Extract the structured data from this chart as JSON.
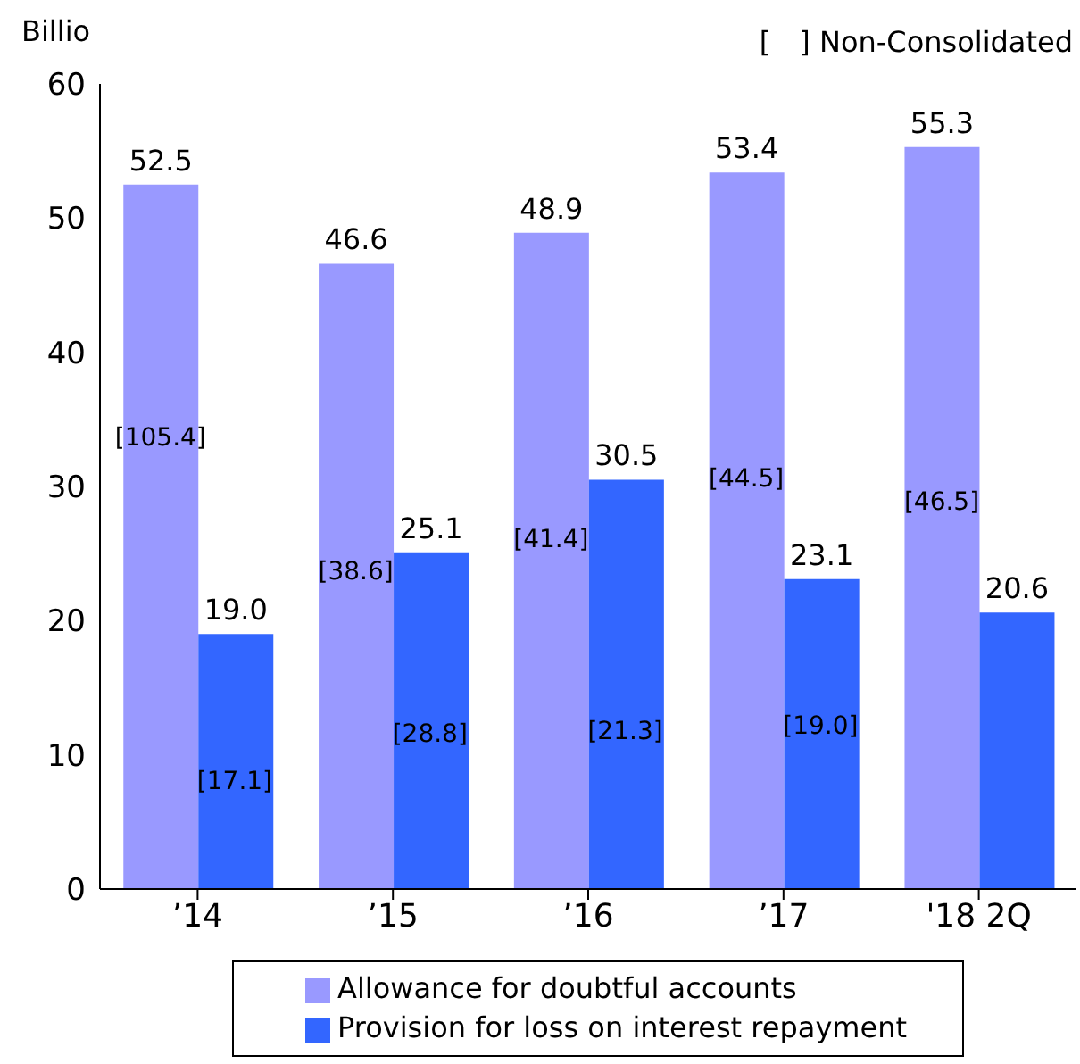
{
  "chart_data": {
    "type": "bar",
    "ylabel": "Billio",
    "annotations": [
      "[　] Non-Consolidated",
      {
        "text": "[105.4]",
        "x": "’14",
        "y": 33.6
      },
      {
        "text": "[17.1]",
        "x": "’14",
        "y": 8
      },
      {
        "text": "[38.6]",
        "x": "’15",
        "y": 23.6
      },
      {
        "text": "[28.8]",
        "x": "’15",
        "y": 11.5
      },
      {
        "text": "[41.4]",
        "x": "’16",
        "y": 26
      },
      {
        "text": "[21.3]",
        "x": "’16",
        "y": 11.7
      },
      {
        "text": "[44.5]",
        "x": "’17",
        "y": 30.5
      },
      {
        "text": "[19.0]",
        "x": "’17",
        "y": 12.1
      },
      {
        "text": "[46.5]",
        "x": "'18 2Q",
        "y": 28.8
      }
    ],
    "categories": [
      "’14",
      "’15",
      "’16",
      "’17",
      "'18 2Q"
    ],
    "series": [
      {
        "name": "Allowance for doubtful accounts",
        "color": "#9999ff",
        "values": [
          52.5,
          46.6,
          48.9,
          53.4,
          55.3
        ],
        "value_labels": [
          "52.5",
          "46.6",
          "48.9",
          "53.4",
          "55.3"
        ]
      },
      {
        "name": "Provision for loss on interest repayment",
        "color": "#3366ff",
        "values": [
          19.0,
          25.1,
          30.5,
          23.1,
          20.6
        ],
        "value_labels": [
          "19.0",
          "25.1",
          "30.5",
          "23.1",
          "20.6"
        ]
      }
    ],
    "ylim": [
      0,
      60
    ],
    "yticks": [
      0,
      10,
      20,
      30,
      40,
      50,
      60
    ],
    "grid": false,
    "legend": "bottom"
  }
}
